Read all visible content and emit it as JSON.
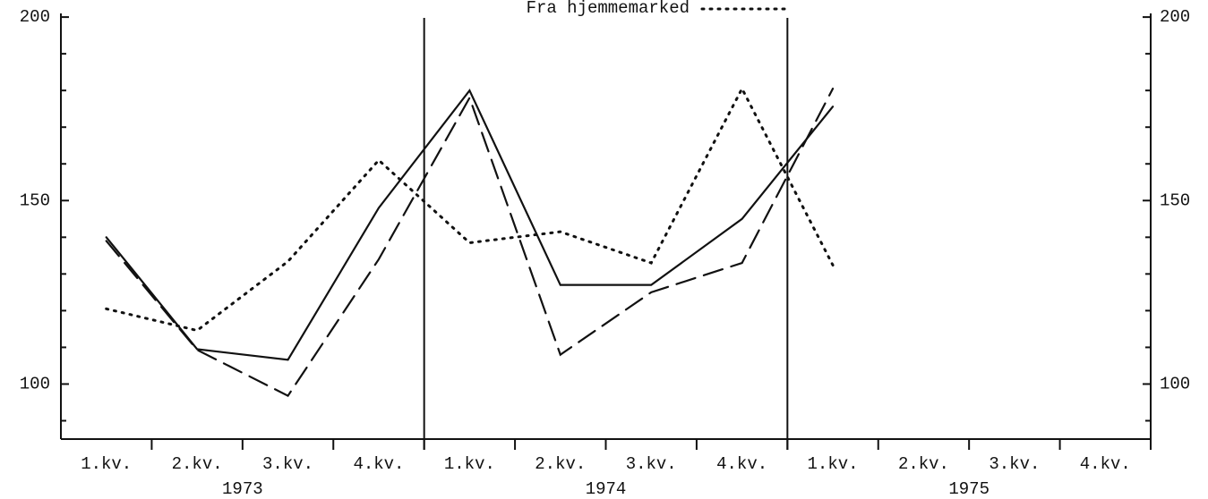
{
  "chart_data": {
    "type": "line",
    "categories": [
      "1.kv.",
      "2.kv.",
      "3.kv.",
      "4.kv.",
      "1.kv.",
      "2.kv.",
      "3.kv.",
      "4.kv.",
      "1.kv.",
      "2.kv.",
      "3.kv.",
      "4.kv."
    ],
    "year_labels": [
      "1973",
      "1974",
      "1975"
    ],
    "series": [
      {
        "color": "#111111",
        "dash": "solid",
        "values": [
          140,
          109.5,
          106.6,
          148,
          180,
          127,
          127,
          145,
          175.6,
          null,
          null,
          null
        ]
      },
      {
        "color": "#111111",
        "dash": "dashed",
        "values": [
          139,
          109.3,
          96.8,
          134,
          178,
          108,
          125,
          133,
          180.5,
          null,
          null,
          null
        ]
      },
      {
        "name": "Fra hjemmemarked",
        "color": "#111111",
        "dash": "dotted",
        "values": [
          120.5,
          114.6,
          133.4,
          161,
          138.5,
          141.5,
          133,
          180.5,
          132.4,
          null,
          null,
          null
        ]
      }
    ],
    "ylim": [
      85,
      201
    ],
    "yticks": [
      100,
      150,
      200
    ],
    "minor_yticks": [
      90,
      110,
      120,
      130,
      140,
      160,
      170,
      180,
      190
    ],
    "y2lim": [
      85,
      201
    ],
    "y2ticks": [
      100,
      150,
      200
    ],
    "legend": "top"
  }
}
